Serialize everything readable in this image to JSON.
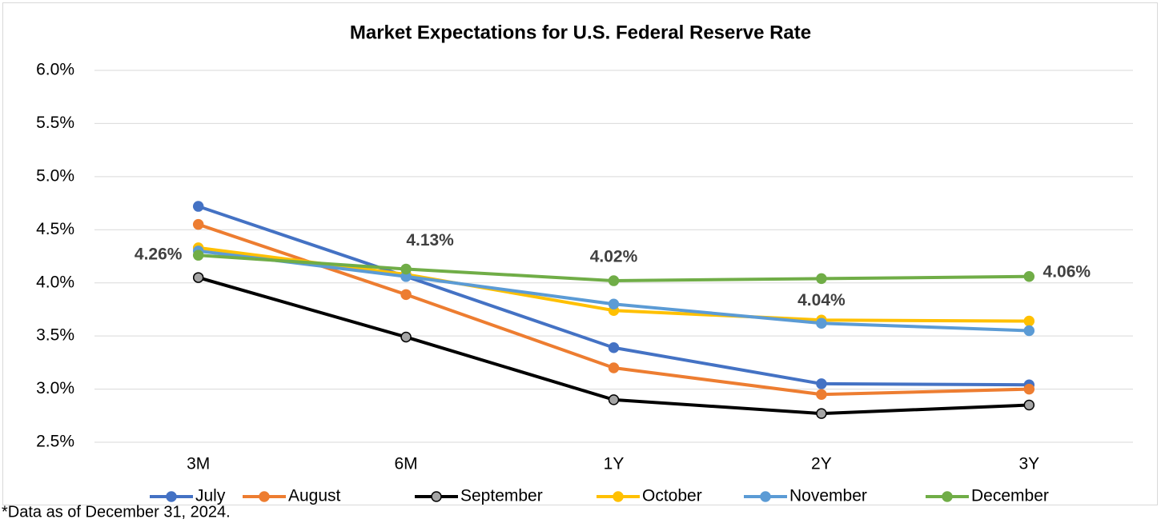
{
  "chart_data": {
    "type": "line",
    "title": "Market Expectations for U.S. Federal Reserve Rate",
    "categories": [
      "3M",
      "6M",
      "1Y",
      "2Y",
      "3Y"
    ],
    "series": [
      {
        "name": "July",
        "color": "#4472c4",
        "values": [
          4.72,
          4.06,
          3.39,
          3.05,
          3.04
        ]
      },
      {
        "name": "August",
        "color": "#ed7d31",
        "values": [
          4.55,
          3.89,
          3.2,
          2.95,
          3.0
        ]
      },
      {
        "name": "September",
        "color": "#000000",
        "marker_color": "#a5a5a5",
        "values": [
          4.05,
          3.49,
          2.9,
          2.77,
          2.85
        ]
      },
      {
        "name": "October",
        "color": "#ffc000",
        "values": [
          4.33,
          4.08,
          3.74,
          3.65,
          3.64
        ]
      },
      {
        "name": "November",
        "color": "#5b9bd5",
        "values": [
          4.3,
          4.06,
          3.8,
          3.62,
          3.55
        ]
      },
      {
        "name": "December",
        "color": "#70ad47",
        "values": [
          4.26,
          4.13,
          4.02,
          4.04,
          4.06
        ],
        "value_labels": [
          "4.26%",
          "4.13%",
          "4.02%",
          "4.04%",
          "4.06%"
        ]
      }
    ],
    "ylim": [
      2.5,
      6.0
    ],
    "yticks": [
      {
        "value": 2.5,
        "label": "2.5%"
      },
      {
        "value": 3.0,
        "label": "3.0%"
      },
      {
        "value": 3.5,
        "label": "3.5%"
      },
      {
        "value": 4.0,
        "label": "4.0%"
      },
      {
        "value": 4.5,
        "label": "4.5%"
      },
      {
        "value": 5.0,
        "label": "5.0%"
      },
      {
        "value": 5.5,
        "label": "5.5%"
      },
      {
        "value": 6.0,
        "label": "6.0%"
      }
    ],
    "grid": true,
    "legend": "bottom",
    "note": "*Data as of December 31, 2024."
  }
}
